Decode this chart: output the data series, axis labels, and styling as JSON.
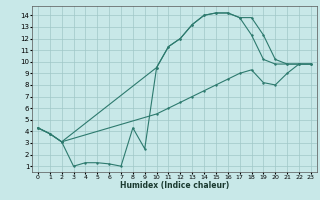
{
  "title": "",
  "xlabel": "Humidex (Indice chaleur)",
  "bg_color": "#c8e8e8",
  "grid_color": "#a0c8c8",
  "line_color": "#2d7a6e",
  "xlim": [
    -0.5,
    23.5
  ],
  "ylim": [
    0.5,
    14.8
  ],
  "xticks": [
    0,
    1,
    2,
    3,
    4,
    5,
    6,
    7,
    8,
    9,
    10,
    11,
    12,
    13,
    14,
    15,
    16,
    17,
    18,
    19,
    20,
    21,
    22,
    23
  ],
  "yticks": [
    1,
    2,
    3,
    4,
    5,
    6,
    7,
    8,
    9,
    10,
    11,
    12,
    13,
    14
  ],
  "curve_top_x": [
    0,
    1,
    2,
    10,
    11,
    12,
    13,
    14,
    15,
    16,
    17,
    18,
    19,
    20,
    21,
    22,
    23
  ],
  "curve_top_y": [
    4.3,
    3.8,
    3.1,
    9.5,
    11.3,
    12.0,
    13.2,
    14.0,
    14.2,
    14.2,
    13.8,
    13.8,
    12.3,
    10.2,
    9.8,
    9.8,
    9.8
  ],
  "curve_mid_x": [
    0,
    1,
    2,
    3,
    4,
    5,
    6,
    7,
    8,
    9,
    10,
    11,
    12,
    13,
    14,
    15,
    16,
    17,
    18,
    19,
    20,
    21,
    22,
    23
  ],
  "curve_mid_y": [
    4.3,
    3.8,
    3.1,
    1.0,
    1.3,
    1.3,
    1.2,
    1.0,
    4.3,
    2.5,
    9.5,
    11.3,
    12.0,
    13.2,
    14.0,
    14.2,
    14.2,
    13.8,
    12.3,
    10.2,
    9.8,
    9.8,
    9.8,
    9.8
  ],
  "curve_bot_x": [
    0,
    1,
    2,
    10,
    11,
    12,
    13,
    14,
    15,
    16,
    17,
    18,
    19,
    20,
    21,
    22,
    23
  ],
  "curve_bot_y": [
    4.3,
    3.8,
    3.1,
    5.5,
    6.0,
    6.5,
    7.0,
    7.5,
    8.0,
    8.5,
    9.0,
    9.3,
    8.2,
    8.0,
    9.0,
    9.8,
    9.8
  ]
}
